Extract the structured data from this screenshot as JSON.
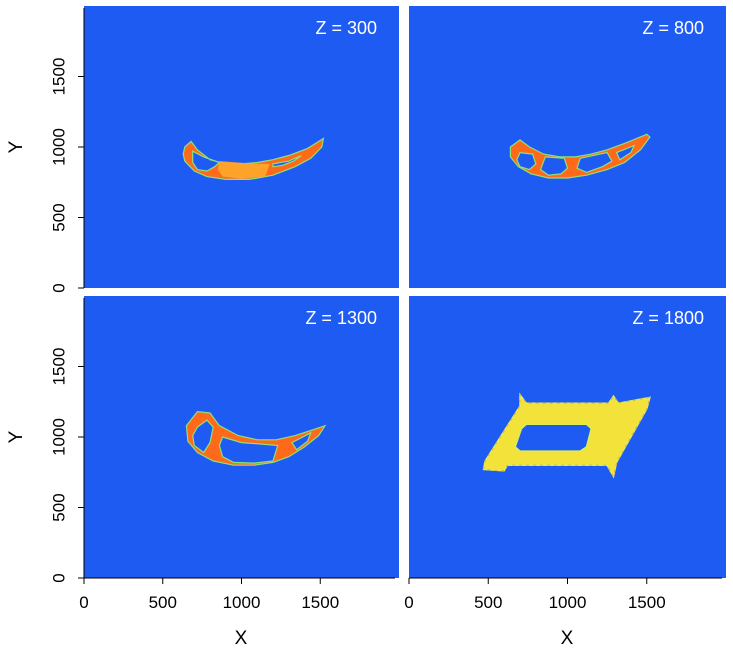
{
  "chart_data": {
    "type": "heatmap",
    "xlabel": "X",
    "ylabel": "Y",
    "xlim": [
      0,
      2000
    ],
    "ylim": [
      0,
      2000
    ],
    "x_ticks": [
      0,
      500,
      1000,
      1500
    ],
    "y_ticks": [
      0,
      500,
      1000,
      1500
    ],
    "x_tick_labels": [
      "0",
      "500",
      "1000",
      "1500"
    ],
    "y_tick_labels": [
      "0",
      "500",
      "1000",
      "1500"
    ],
    "background_color": "#1e5bf2",
    "colors": {
      "shell": "#ff6a1a",
      "fill": "#ffa52a",
      "edge": "#8fe07a",
      "plate": "#f2e23a"
    },
    "panels": [
      {
        "title": "Z = 300",
        "shape": "crescent",
        "outer": [
          [
            640,
            1000
          ],
          [
            680,
            1040
          ],
          [
            720,
            980
          ],
          [
            800,
            910
          ],
          [
            900,
            880
          ],
          [
            1000,
            880
          ],
          [
            1100,
            890
          ],
          [
            1200,
            910
          ],
          [
            1300,
            940
          ],
          [
            1420,
            990
          ],
          [
            1520,
            1060
          ],
          [
            1510,
            1000
          ],
          [
            1440,
            920
          ],
          [
            1340,
            860
          ],
          [
            1200,
            800
          ],
          [
            1050,
            770
          ],
          [
            900,
            770
          ],
          [
            780,
            790
          ],
          [
            700,
            830
          ],
          [
            640,
            900
          ],
          [
            630,
            950
          ]
        ],
        "holes": [
          [
            [
              690,
              970
            ],
            [
              760,
              930
            ],
            [
              860,
              890
            ],
            [
              830,
              860
            ],
            [
              780,
              830
            ],
            [
              720,
              840
            ],
            [
              690,
              890
            ]
          ],
          [
            [
              1200,
              880
            ],
            [
              1300,
              900
            ],
            [
              1380,
              940
            ],
            [
              1330,
              900
            ],
            [
              1260,
              870
            ],
            [
              1200,
              860
            ]
          ]
        ],
        "fill_region": [
          [
            860,
            900
          ],
          [
            1100,
            880
          ],
          [
            1180,
            880
          ],
          [
            1150,
            790
          ],
          [
            1000,
            775
          ],
          [
            880,
            790
          ],
          [
            850,
            840
          ]
        ]
      },
      {
        "title": "Z = 800",
        "shape": "crescent",
        "outer": [
          [
            640,
            1000
          ],
          [
            700,
            1050
          ],
          [
            760,
            1000
          ],
          [
            850,
            950
          ],
          [
            950,
            930
          ],
          [
            1050,
            930
          ],
          [
            1150,
            950
          ],
          [
            1250,
            980
          ],
          [
            1370,
            1030
          ],
          [
            1500,
            1090
          ],
          [
            1520,
            1070
          ],
          [
            1460,
            980
          ],
          [
            1360,
            890
          ],
          [
            1250,
            840
          ],
          [
            1120,
            800
          ],
          [
            1000,
            780
          ],
          [
            880,
            780
          ],
          [
            770,
            810
          ],
          [
            690,
            860
          ],
          [
            640,
            930
          ]
        ],
        "holes": [
          [
            [
              700,
              960
            ],
            [
              780,
              950
            ],
            [
              800,
              880
            ],
            [
              760,
              840
            ],
            [
              700,
              860
            ],
            [
              680,
              910
            ]
          ],
          [
            [
              860,
              930
            ],
            [
              980,
              920
            ],
            [
              1000,
              850
            ],
            [
              960,
              810
            ],
            [
              880,
              800
            ],
            [
              830,
              840
            ]
          ],
          [
            [
              1080,
              920
            ],
            [
              1250,
              960
            ],
            [
              1280,
              900
            ],
            [
              1220,
              860
            ],
            [
              1120,
              820
            ],
            [
              1060,
              850
            ]
          ],
          [
            [
              1310,
              960
            ],
            [
              1420,
              1010
            ],
            [
              1400,
              960
            ],
            [
              1330,
              910
            ]
          ]
        ],
        "fill_region": []
      },
      {
        "title": "Z = 1300",
        "shape": "crescent",
        "outer": [
          [
            650,
            1080
          ],
          [
            720,
            1180
          ],
          [
            800,
            1170
          ],
          [
            860,
            1080
          ],
          [
            980,
            1010
          ],
          [
            1100,
            980
          ],
          [
            1220,
            980
          ],
          [
            1340,
            1010
          ],
          [
            1450,
            1050
          ],
          [
            1530,
            1080
          ],
          [
            1490,
            1010
          ],
          [
            1400,
            930
          ],
          [
            1300,
            860
          ],
          [
            1200,
            820
          ],
          [
            1080,
            800
          ],
          [
            950,
            800
          ],
          [
            820,
            830
          ],
          [
            720,
            890
          ],
          [
            660,
            970
          ]
        ],
        "holes": [
          [
            [
              720,
              1070
            ],
            [
              780,
              1120
            ],
            [
              820,
              1070
            ],
            [
              800,
              960
            ],
            [
              760,
              890
            ],
            [
              700,
              940
            ],
            [
              690,
              1010
            ]
          ],
          [
            [
              880,
              1000
            ],
            [
              1000,
              960
            ],
            [
              1130,
              950
            ],
            [
              1230,
              940
            ],
            [
              1200,
              830
            ],
            [
              1080,
              815
            ],
            [
              950,
              820
            ],
            [
              880,
              860
            ],
            [
              860,
              940
            ]
          ],
          [
            [
              1320,
              960
            ],
            [
              1440,
              1030
            ],
            [
              1420,
              970
            ],
            [
              1350,
              910
            ]
          ]
        ],
        "fill_region": []
      },
      {
        "title": "Z = 1800",
        "shape": "plate",
        "outer": [
          [
            470,
            770
          ],
          [
            480,
            830
          ],
          [
            700,
            1220
          ],
          [
            700,
            1300
          ],
          [
            740,
            1240
          ],
          [
            1260,
            1240
          ],
          [
            1290,
            1290
          ],
          [
            1320,
            1240
          ],
          [
            1520,
            1280
          ],
          [
            1500,
            1200
          ],
          [
            1310,
            820
          ],
          [
            1290,
            720
          ],
          [
            1250,
            800
          ],
          [
            620,
            800
          ],
          [
            600,
            760
          ]
        ],
        "holes": [
          [
            [
              710,
              1060
            ],
            [
              740,
              1090
            ],
            [
              1120,
              1090
            ],
            [
              1150,
              1060
            ],
            [
              1120,
              930
            ],
            [
              1080,
              900
            ],
            [
              700,
              900
            ],
            [
              670,
              930
            ]
          ]
        ],
        "fill_region": []
      }
    ]
  }
}
